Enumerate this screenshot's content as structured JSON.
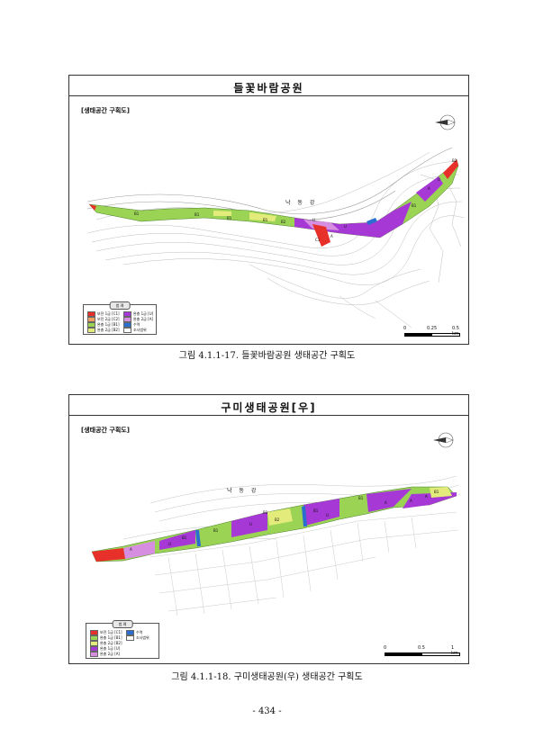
{
  "figure1": {
    "title": "들꽃바람공원",
    "section_label": "[생태공간 구획도]",
    "river_label": "낙 동 강",
    "legend": {
      "heading": "범 례",
      "items": [
        {
          "label": "보전 1급 [C1]",
          "color": "#e8302a"
        },
        {
          "label": "완충 1급 [U]",
          "color": "#a638d6"
        },
        {
          "label": "보전 2급 [C2]",
          "color": "#f0a060"
        },
        {
          "label": "완충 2급 [A]",
          "color": "#d58ee0"
        },
        {
          "label": "완충 1급 [B1]",
          "color": "#9bd455"
        },
        {
          "label": "수역",
          "color": "#2a6fd0"
        },
        {
          "label": "완충 2급 [B2]",
          "color": "#e3ec7a"
        },
        {
          "label": "조사범위",
          "color": "#ffffff"
        }
      ]
    },
    "scale": {
      "ticks": [
        "0",
        "0.25",
        "0.5 km"
      ]
    },
    "zone_labels": [
      "B1",
      "B1",
      "B1",
      "B1",
      "B2",
      "U",
      "U",
      "A",
      "C1",
      "B1",
      "A",
      "U",
      "B2"
    ],
    "caption": "그림 4.1.1-17. 들꽃바람공원 생태공간 구획도"
  },
  "figure2": {
    "title": "구미생태공원[우]",
    "section_label": "[생태공간 구획도]",
    "river_label": "낙 동 강",
    "legend": {
      "heading": "범 례",
      "items": [
        {
          "label": "보전 1급 [C1]",
          "color": "#e8302a"
        },
        {
          "label": "수역",
          "color": "#2a6fd0"
        },
        {
          "label": "완충 1급 [B1]",
          "color": "#9bd455"
        },
        {
          "label": "조사범위",
          "color": "#ffffff"
        },
        {
          "label": "완충 2급 [B2]",
          "color": "#e3ec7a"
        },
        {
          "label": "완충 1급 [U]",
          "color": "#a638d6"
        },
        {
          "label": "완충 2급 [A]",
          "color": "#d58ee0"
        }
      ]
    },
    "scale": {
      "ticks": [
        "0",
        "0.5",
        "1 km"
      ]
    },
    "zone_labels": [
      "A",
      "U",
      "B1",
      "B1",
      "B2",
      "U",
      "B1",
      "B1",
      "U",
      "A",
      "B1",
      "A",
      "A",
      "B1"
    ],
    "caption": "그림 4.1.1-18. 구미생태공원(우) 생태공간 구획도"
  },
  "page_number": "- 434 -"
}
